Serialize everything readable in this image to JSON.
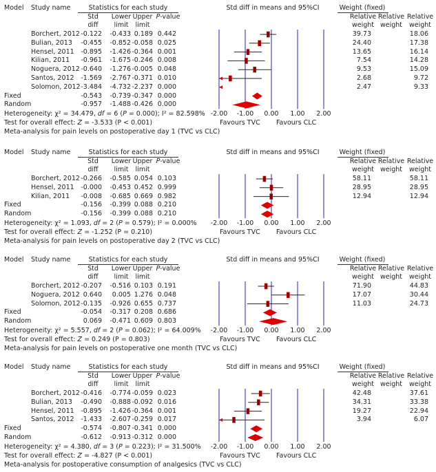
{
  "colors": {
    "grid": "#6b6bdf",
    "marker": "#8b0000",
    "diamond": "#e00000",
    "ci": "#222222"
  },
  "labels": {
    "model": "Model",
    "study": "Study name",
    "stats": "Statistics for each study",
    "std": "Std",
    "diff": "diff",
    "lower": "Lower",
    "upper": "Upper",
    "limit": "limit",
    "pvalue": "P-value",
    "plot_title": "Std diff in means and 95%CI",
    "weight_title": "Weight (fixed)",
    "relative": "Relative",
    "weight": "weight",
    "favours_left": "Favours TVC",
    "favours_right": "Favours CLC",
    "ticks": [
      "-2.00",
      "-1.00",
      "0.00",
      "1.00",
      "2.00"
    ],
    "fixed": "Fixed",
    "random": "Random"
  },
  "chart_data": [
    {
      "type": "forest",
      "xlim": [
        -2,
        2
      ],
      "studies": [
        {
          "name": "Borchert, 2012",
          "std": "-0.122",
          "lower": "-0.433",
          "upper": "0.189",
          "p": "0.442",
          "w1": "39.73",
          "w3": "18.06"
        },
        {
          "name": "Bulian, 2013",
          "std": "-0.455",
          "lower": "-0.852",
          "upper": "-0.058",
          "p": "0.025",
          "w1": "24.40",
          "w3": "17.38"
        },
        {
          "name": "Hensel, 2011",
          "std": "-0.895",
          "lower": "-1.426",
          "upper": "-0.364",
          "p": "0.001",
          "w1": "13.65",
          "w3": "16.14"
        },
        {
          "name": "Kilian, 2011",
          "std": "-0.961",
          "lower": "-1.675",
          "upper": "-0.246",
          "p": "0.008",
          "w1": "7.54",
          "w3": "14.28"
        },
        {
          "name": "Noguera, 2012",
          "std": "-0.640",
          "lower": "-1.276",
          "upper": "-0.005",
          "p": "0.048",
          "w1": "9.53",
          "w3": "15.09"
        },
        {
          "name": "Santos, 2012",
          "std": "-1.569",
          "lower": "-2.767",
          "upper": "-0.371",
          "p": "0.010",
          "w1": "2.68",
          "w3": "9.72"
        },
        {
          "name": "Solomon, 2012",
          "std": "-3.484",
          "lower": "-4.732",
          "upper": "-2.237",
          "p": "0.000",
          "w1": "2.47",
          "w3": "9.33"
        }
      ],
      "fixed": {
        "std": "-0.543",
        "lower": "-0.739",
        "upper": "-0.347",
        "p": "0.000"
      },
      "random": {
        "std": "-0.957",
        "lower": "-1.488",
        "upper": "-0.426",
        "p": "0.000"
      },
      "heterogeneity": {
        "pre": "Heterogeneity: χ² = 34.479, ",
        "df": "df",
        "mid": " = 6 (",
        "P": "P",
        "post": " = 0.000); I² = 82.598%"
      },
      "test": {
        "pre": "Test for overall effect: ",
        "Z": "Z",
        "post": " = -3.533 (P < 0.001)"
      },
      "caption": "Meta-analysis for pain levels on postoperative day 1 (TVC vs CLC)"
    },
    {
      "type": "forest",
      "xlim": [
        -2,
        2
      ],
      "studies": [
        {
          "name": "Borchert, 2012",
          "std": "-0.266",
          "lower": "-0.585",
          "upper": "0.054",
          "p": "0.103",
          "w1": "58.11",
          "w3": "58.11"
        },
        {
          "name": "Hensel, 2011",
          "std": "-0.000",
          "lower": "-0.453",
          "upper": "0.452",
          "p": "0.999",
          "w1": "28.95",
          "w3": "28.95"
        },
        {
          "name": "Kilian, 2011",
          "std": "-0.008",
          "lower": "-0.685",
          "upper": "0.669",
          "p": "0.982",
          "w1": "12.94",
          "w3": "12.94"
        }
      ],
      "fixed": {
        "std": "-0.156",
        "lower": "-0.399",
        "upper": "0.088",
        "p": "0.210"
      },
      "random": {
        "std": "-0.156",
        "lower": "-0.399",
        "upper": "0.088",
        "p": "0.210"
      },
      "heterogeneity": {
        "pre": "Heterogeneity: χ² = 1.093, ",
        "df": "df",
        "mid": " = 2 (",
        "P": "P",
        "post": " = 0.579); I² = 0.000%"
      },
      "test": {
        "pre": "Test for overall effect: ",
        "Z": "Z",
        "post": " = -1.252 (P = 0.210)"
      },
      "caption": "Meta-analysis for pain levels on postoperative day 2 (TVC vs CLC)"
    },
    {
      "type": "forest",
      "xlim": [
        -2,
        2
      ],
      "studies": [
        {
          "name": "Borchert, 2012",
          "std": "-0.207",
          "lower": "-0.516",
          "upper": "0.103",
          "p": "0.191",
          "w1": "71.90",
          "w3": "44.83"
        },
        {
          "name": "Noguera, 2012",
          "std": "0.640",
          "lower": "0.005",
          "upper": "1.276",
          "p": "0.048",
          "w1": "17.07",
          "w3": "30.44"
        },
        {
          "name": "Solomon, 2012",
          "std": "-0.135",
          "lower": "-0.926",
          "upper": "0.655",
          "p": "0.737",
          "w1": "11.03",
          "w3": "24.73"
        }
      ],
      "fixed": {
        "std": "-0.054",
        "lower": "-0.317",
        "upper": "0.208",
        "p": "0.686"
      },
      "random": {
        "std": "0.069",
        "lower": "-0.471",
        "upper": "0.609",
        "p": "0.803"
      },
      "heterogeneity": {
        "pre": "Heterogeneity: χ² = 5.557, ",
        "df": "df",
        "mid": " = 2 (",
        "P": "P",
        "post": " = 0.062); I² = 64.009%"
      },
      "test": {
        "pre": "Test for overall effect: ",
        "Z": "Z",
        "post": " = 0.249 (P = 0.803)"
      },
      "caption": "Meta-analysis for pain levels on postoperative one month (TVC vs CLC)"
    },
    {
      "type": "forest",
      "xlim": [
        -2,
        2
      ],
      "studies": [
        {
          "name": "Borchert, 2012",
          "std": "-0.416",
          "lower": "-0.774",
          "upper": "-0.059",
          "p": "0.023",
          "w1": "42.48",
          "w3": "37.61"
        },
        {
          "name": "Bulian, 2013",
          "std": "-0.490",
          "lower": "-0.888",
          "upper": "-0.092",
          "p": "0.016",
          "w1": "34.31",
          "w3": "33.38"
        },
        {
          "name": "Hensel, 2011",
          "std": "-0.895",
          "lower": "-1.426",
          "upper": "-0.364",
          "p": "0.001",
          "w1": "19.27",
          "w3": "22.94"
        },
        {
          "name": "Santos, 2012",
          "std": "-1.433",
          "lower": "-2.607",
          "upper": "-0.259",
          "p": "0.017",
          "w1": "3.94",
          "w3": "6.07"
        }
      ],
      "fixed": {
        "std": "-0.574",
        "lower": "-0.807",
        "upper": "-0.341",
        "p": "0.000"
      },
      "random": {
        "std": "-0.612",
        "lower": "-0.913",
        "upper": "-0.312",
        "p": "0.000"
      },
      "heterogeneity": {
        "pre": "Heterogeneity: χ² = 4.380, ",
        "df": "df",
        "mid": " = 3 (",
        "P": "P",
        "post": " = 0.223); I² = 31.500%"
      },
      "test": {
        "pre": "Test for overall effect: ",
        "Z": "Z",
        "post": " = -4.827 (P < 0.001)"
      },
      "caption": "Meta-analysis for postoperative consumption of analgesics (TVC vs CLC)"
    }
  ]
}
